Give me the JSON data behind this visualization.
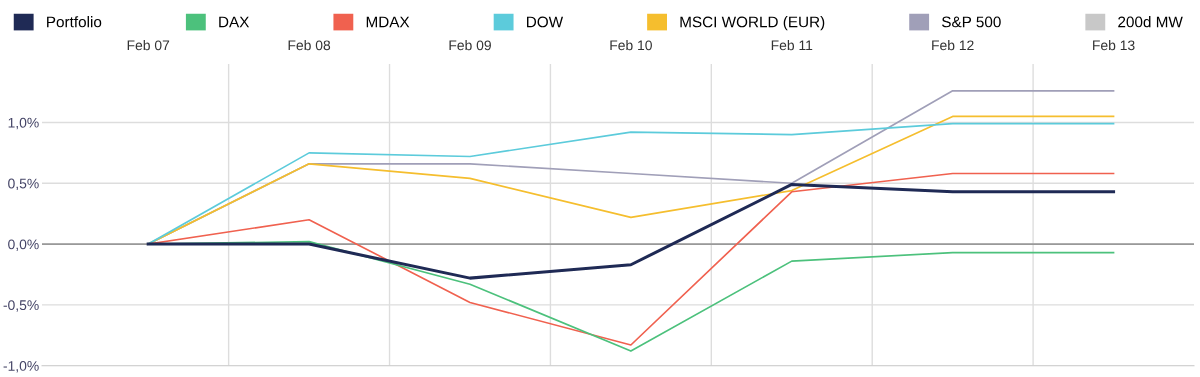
{
  "chart_data": {
    "type": "line",
    "categories": [
      "Feb 07",
      "Feb 08",
      "Feb 09",
      "Feb 10",
      "Feb 11",
      "Feb 12",
      "Feb 13"
    ],
    "series": [
      {
        "name": "Portfolio",
        "color": "#1f2a55",
        "values": [
          0,
          0,
          -0.28,
          -0.17,
          0.49,
          0.43,
          0.43
        ]
      },
      {
        "name": "DAX",
        "color": "#4cc17c",
        "values": [
          0,
          0.02,
          -0.33,
          -0.88,
          -0.14,
          -0.07,
          -0.07
        ]
      },
      {
        "name": "MDAX",
        "color": "#f0614f",
        "values": [
          0,
          0.2,
          -0.48,
          -0.83,
          0.43,
          0.58,
          0.58
        ]
      },
      {
        "name": "DOW",
        "color": "#5ccbdb",
        "values": [
          0,
          0.75,
          0.72,
          0.92,
          0.9,
          0.99,
          0.99
        ]
      },
      {
        "name": "MSCI WORLD (EUR)",
        "color": "#f5be2e",
        "values": [
          0,
          0.66,
          0.54,
          0.22,
          0.44,
          1.05,
          1.05
        ]
      },
      {
        "name": "S&P 500",
        "color": "#a09fb8",
        "values": [
          0,
          0.66,
          0.66,
          0.58,
          0.5,
          1.26,
          1.26
        ]
      },
      {
        "name": "200d MW",
        "color": "#c8c8c8",
        "values": [
          null,
          null,
          null,
          null,
          null,
          null,
          null
        ]
      }
    ],
    "ylim": [
      -1.0,
      1.48
    ],
    "yticks": [
      {
        "value": -1.0,
        "label": "-1,0%"
      },
      {
        "value": -0.5,
        "label": "-0,5%"
      },
      {
        "value": 0,
        "label": "0,0%"
      },
      {
        "value": 0.5,
        "label": "0,5%"
      },
      {
        "value": 1.0,
        "label": "1,0%"
      }
    ],
    "ref_lines": [
      {
        "axis": "y",
        "value": 0,
        "color": "#999999"
      }
    ],
    "grid": true,
    "legend": "top left",
    "marker": "none",
    "line_style": "solid"
  }
}
